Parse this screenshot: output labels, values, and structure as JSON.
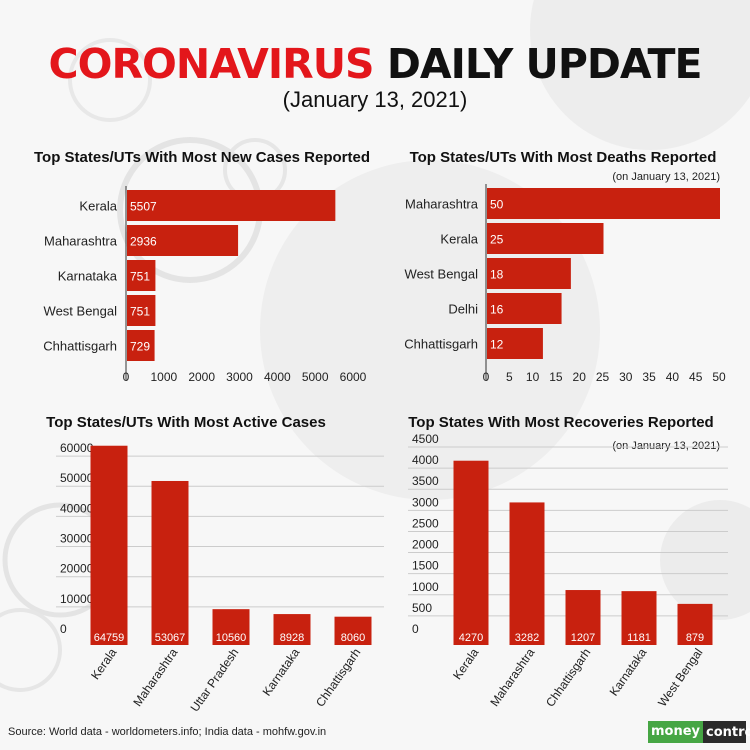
{
  "header": {
    "title_part1": "CORONAVIRUS",
    "title_part2": "DAILY UPDATE",
    "subtitle": "(January 13, 2021)"
  },
  "colors": {
    "bar": "#c8210f",
    "title_red": "#e3161b",
    "grid": "#cccccc"
  },
  "chart_data": [
    {
      "type": "bar",
      "orientation": "horizontal",
      "title": "Top States/UTs With Most New Cases Reported",
      "subtitle": "",
      "categories": [
        "Kerala",
        "Maharashtra",
        "Karnataka",
        "West Bengal",
        "Chhattisgarh"
      ],
      "values": [
        5507,
        2936,
        751,
        751,
        729
      ],
      "xticks": [
        "0",
        "1000",
        "2000",
        "3000",
        "4000",
        "5000",
        "6000"
      ],
      "xlim": [
        0,
        6000
      ],
      "grid": false
    },
    {
      "type": "bar",
      "orientation": "horizontal",
      "title": "Top States/UTs With Most Deaths Reported",
      "subtitle": "(on January 13, 2021)",
      "categories": [
        "Maharashtra",
        "Kerala",
        "West Bengal",
        "Delhi",
        "Chhattisgarh"
      ],
      "values": [
        50,
        25,
        18,
        16,
        12
      ],
      "xticks": [
        "0",
        "5",
        "10",
        "15",
        "20",
        "25",
        "30",
        "35",
        "40",
        "45",
        "50"
      ],
      "xlim": [
        0,
        50
      ],
      "grid": false
    },
    {
      "type": "bar",
      "orientation": "vertical",
      "title": "Top States/UTs With Most Active Cases",
      "subtitle": "",
      "categories": [
        "Kerala",
        "Maharashtra",
        "Uttar Pradesh",
        "Karnataka",
        "Chhattisgarh"
      ],
      "values": [
        64759,
        53067,
        10560,
        8928,
        8060
      ],
      "yticks": [
        "0",
        "10000",
        "20000",
        "30000",
        "40000",
        "50000",
        "60000"
      ],
      "ylim": [
        0,
        65000
      ],
      "grid": true
    },
    {
      "type": "bar",
      "orientation": "vertical",
      "title": "Top States With Most Recoveries Reported",
      "subtitle": "(on January 13, 2021)",
      "categories": [
        "Kerala",
        "Maharashtra",
        "Chhattisgarh",
        "Karnataka",
        "West Bengal"
      ],
      "values": [
        4270,
        3282,
        1207,
        1181,
        879
      ],
      "yticks": [
        "0",
        "500",
        "1000",
        "1500",
        "2000",
        "2500",
        "3000",
        "3500",
        "4000",
        "4500"
      ],
      "ylim": [
        0,
        4500
      ],
      "grid": true
    }
  ],
  "footer": {
    "source": "Source: World data - worldometers.info; India data - mohfw.gov.in",
    "logo_part1": "money",
    "logo_part2": "control"
  }
}
